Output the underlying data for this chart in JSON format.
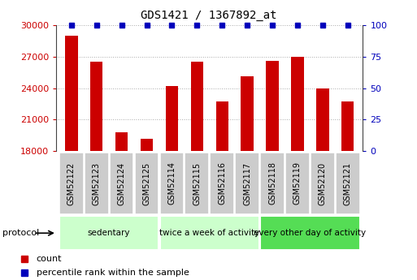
{
  "title": "GDS1421 / 1367892_at",
  "categories": [
    "GSM52122",
    "GSM52123",
    "GSM52124",
    "GSM52125",
    "GSM52114",
    "GSM52115",
    "GSM52116",
    "GSM52117",
    "GSM52118",
    "GSM52119",
    "GSM52120",
    "GSM52121"
  ],
  "counts": [
    29000,
    26500,
    19800,
    19200,
    24200,
    26500,
    22700,
    25100,
    26600,
    27000,
    24000,
    22700
  ],
  "percentile_ranks": [
    100,
    100,
    100,
    100,
    100,
    100,
    100,
    100,
    100,
    100,
    100,
    100
  ],
  "ylim": [
    18000,
    30000
  ],
  "yticks": [
    18000,
    21000,
    24000,
    27000,
    30000
  ],
  "right_ylim": [
    0,
    100
  ],
  "right_yticks": [
    0,
    25,
    50,
    75,
    100
  ],
  "bar_color": "#cc0000",
  "percentile_color": "#0000bb",
  "bar_width": 0.5,
  "group_defs": [
    {
      "start": 0,
      "end": 3,
      "label": "sedentary",
      "color": "#ccffcc"
    },
    {
      "start": 4,
      "end": 7,
      "label": "twice a week of activity",
      "color": "#ccffcc"
    },
    {
      "start": 8,
      "end": 11,
      "label": "every other day of activity",
      "color": "#55dd55"
    }
  ],
  "left_axis_color": "#cc0000",
  "right_axis_color": "#0000bb",
  "grid_color": "#aaaaaa",
  "tick_label_bg": "#cccccc",
  "legend_count_label": "count",
  "legend_percentile_label": "percentile rank within the sample",
  "fig_width": 5.13,
  "fig_height": 3.45,
  "dpi": 100
}
